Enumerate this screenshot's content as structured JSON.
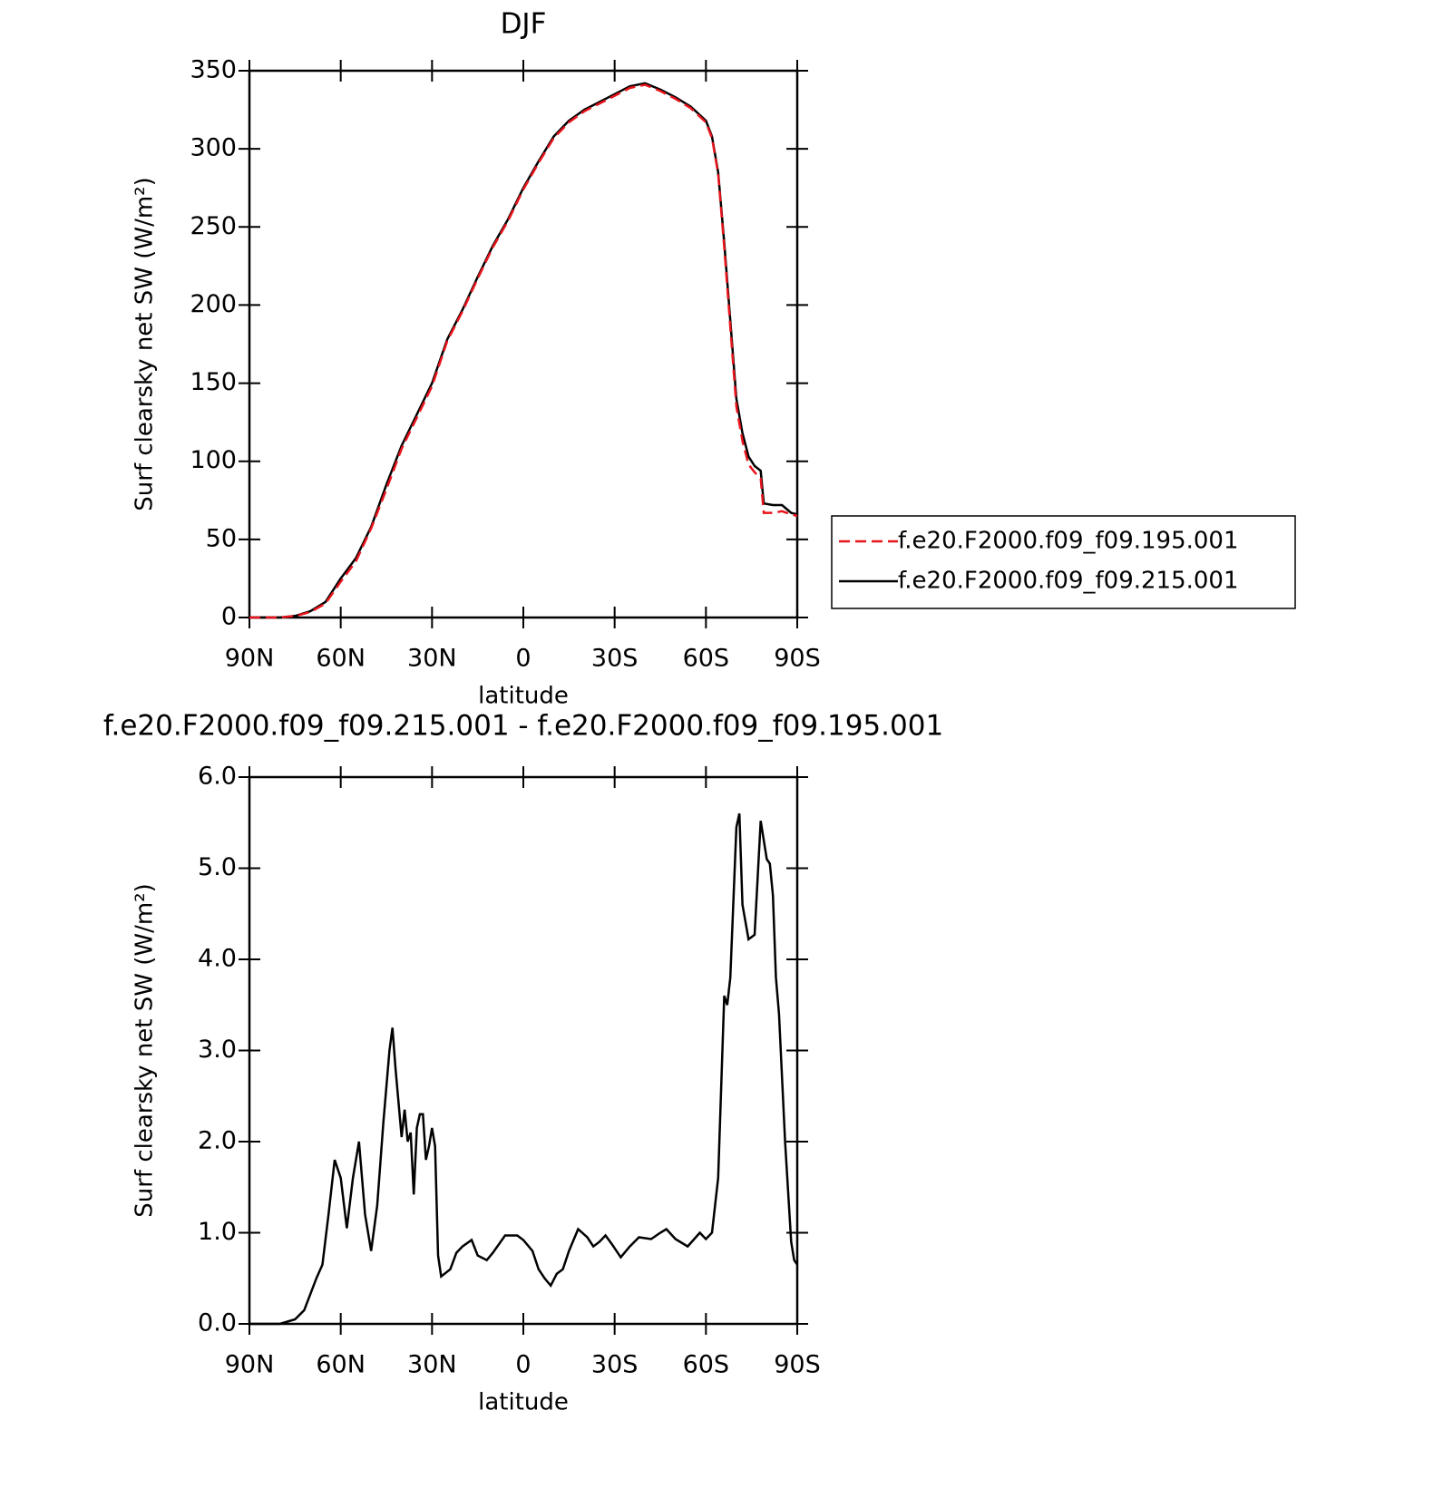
{
  "chart_data": [
    {
      "type": "line",
      "title": "DJF",
      "x_label": "latitude",
      "y_label": "Surf clearsky net SW (W/m²)",
      "xlim": [
        90,
        -90
      ],
      "ylim": [
        0,
        350
      ],
      "xticks": [
        {
          "value": 90,
          "label": "90N"
        },
        {
          "value": 60,
          "label": "60N"
        },
        {
          "value": 30,
          "label": "30N"
        },
        0,
        {
          "value": -30,
          "label": "30S"
        },
        {
          "value": -60,
          "label": "60S"
        },
        {
          "value": -90,
          "label": "90S"
        }
      ],
      "yticks": [
        0,
        50,
        100,
        150,
        200,
        250,
        300,
        350
      ],
      "legend": "right",
      "x": [
        90,
        80,
        75,
        70,
        65,
        60,
        55,
        50,
        45,
        40,
        35,
        30,
        25,
        20,
        15,
        10,
        5,
        0,
        -5,
        -10,
        -15,
        -20,
        -25,
        -30,
        -35,
        -40,
        -45,
        -50,
        -55,
        -60,
        -62,
        -64,
        -66,
        -68,
        -70,
        -72,
        -74,
        -76,
        -78,
        -79,
        -82,
        -85,
        -88,
        -90
      ],
      "series": [
        {
          "name": "f.e20.F2000.f09_f09.195.001",
          "color": "#e8141c",
          "dash": "dashed",
          "values": [
            0,
            0,
            1,
            3.5,
            9,
            23,
            36,
            57,
            82,
            108,
            128,
            148,
            177,
            196,
            217,
            237,
            254,
            274,
            291,
            307,
            317,
            324,
            329,
            334,
            339,
            341,
            337,
            332,
            326,
            317,
            307,
            284,
            237,
            186,
            135,
            113,
            98,
            93,
            89,
            67,
            67,
            68,
            66,
            65
          ]
        },
        {
          "name": "f.e20.F2000.f09_f09.215.001",
          "color": "#000000",
          "dash": "solid",
          "values": [
            0,
            0,
            1,
            4,
            10,
            25,
            38,
            58,
            85,
            110,
            130,
            150,
            178,
            197,
            218,
            238,
            255,
            275,
            292,
            308,
            318,
            325,
            330,
            335,
            340,
            342,
            338,
            333,
            327,
            318,
            308,
            285,
            240,
            190,
            140,
            118,
            103,
            97,
            94,
            73,
            72,
            72,
            67,
            66
          ]
        }
      ]
    },
    {
      "type": "line",
      "title": "f.e20.F2000.f09_f09.215.001 - f.e20.F2000.f09_f09.195.001",
      "x_label": "latitude",
      "y_label": "Surf clearsky net SW (W/m²)",
      "xlim": [
        90,
        -90
      ],
      "ylim": [
        0,
        6
      ],
      "xticks": [
        {
          "value": 90,
          "label": "90N"
        },
        {
          "value": 60,
          "label": "60N"
        },
        {
          "value": 30,
          "label": "30N"
        },
        0,
        {
          "value": -30,
          "label": "30S"
        },
        {
          "value": -60,
          "label": "60S"
        },
        {
          "value": -90,
          "label": "90S"
        }
      ],
      "yticks": [
        {
          "value": 0,
          "label": "0.0"
        },
        {
          "value": 1,
          "label": "1.0"
        },
        {
          "value": 2,
          "label": "2.0"
        },
        {
          "value": 3,
          "label": "3.0"
        },
        {
          "value": 4,
          "label": "4.0"
        },
        {
          "value": 5,
          "label": "5.0"
        },
        {
          "value": 6,
          "label": "6.0"
        }
      ],
      "color": "#000000",
      "x": [
        90,
        80,
        75,
        72,
        68,
        66,
        64,
        62,
        60,
        58,
        56,
        54,
        52,
        50,
        48,
        46,
        44,
        43,
        42,
        40,
        39,
        38,
        37,
        36,
        35,
        34,
        33,
        32,
        31,
        30,
        29,
        28,
        27,
        24,
        22,
        20,
        17,
        15,
        12,
        10,
        6,
        2,
        0,
        -3,
        -5,
        -7,
        -9,
        -11,
        -13,
        -15,
        -18,
        -21,
        -23,
        -25,
        -27,
        -29,
        -32,
        -35,
        -38,
        -42,
        -45,
        -47,
        -50,
        -54,
        -58,
        -60,
        -62,
        -64,
        -66,
        -67,
        -68,
        -70,
        -71,
        -72,
        -74,
        -76,
        -78,
        -80,
        -81,
        -82,
        -83,
        -84,
        -86,
        -88,
        -89,
        -90
      ],
      "values": [
        0,
        0,
        0.05,
        0.15,
        0.5,
        0.65,
        1.2,
        1.8,
        1.6,
        1.05,
        1.6,
        2.0,
        1.2,
        0.8,
        1.3,
        2.2,
        3.0,
        3.25,
        2.8,
        2.05,
        2.35,
        2.0,
        2.1,
        1.42,
        2.15,
        2.3,
        2.3,
        1.8,
        1.95,
        2.15,
        1.95,
        0.75,
        0.52,
        0.6,
        0.78,
        0.85,
        0.92,
        0.75,
        0.7,
        0.78,
        0.97,
        0.97,
        0.92,
        0.8,
        0.6,
        0.5,
        0.42,
        0.55,
        0.6,
        0.8,
        1.04,
        0.95,
        0.85,
        0.9,
        0.97,
        0.88,
        0.73,
        0.85,
        0.95,
        0.93,
        1.0,
        1.04,
        0.93,
        0.85,
        1.0,
        0.93,
        1.0,
        1.6,
        3.6,
        3.5,
        3.8,
        5.45,
        5.6,
        4.6,
        4.22,
        4.27,
        5.52,
        5.1,
        5.05,
        4.7,
        3.8,
        3.4,
        2.0,
        0.9,
        0.7,
        0.65
      ]
    }
  ]
}
